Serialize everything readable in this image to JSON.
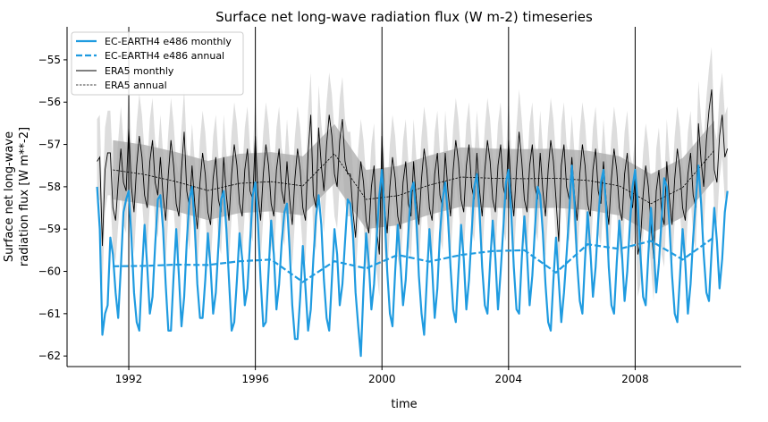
{
  "chart_data": {
    "type": "line",
    "title": "Surface net long-wave radiation flux (W m-2) timeseries",
    "xlabel": "time",
    "ylabel": [
      "Surface net long-wave",
      "radiation flux [W m**-2]"
    ],
    "xlim": [
      1990.05,
      2011.35
    ],
    "ylim": [
      -62.25,
      -54.22
    ],
    "xticks": [
      1992,
      1996,
      2000,
      2004,
      2008
    ],
    "yticks": [
      -55,
      -56,
      -57,
      -58,
      -59,
      -60,
      -61,
      -62
    ],
    "vertical_lines_at_xticks": true,
    "legend_placement": "upper-left",
    "colors": {
      "ec_earth": "#1f9be0",
      "era5": "#000000",
      "era5_annual_band": "#aaaaaa",
      "era5_monthly_band": "#dddddd"
    },
    "monthly_start_year": 1991,
    "annual_years": [
      1991.5,
      1992.5,
      1993.5,
      1994.5,
      1995.5,
      1996.5,
      1997.5,
      1998.5,
      1999.5,
      2000.5,
      2001.5,
      2002.5,
      2003.5,
      2004.5,
      2005.5,
      2006.5,
      2007.5,
      2008.5,
      2009.5,
      2010.5
    ],
    "series": [
      {
        "name": "EC-EARTH4 e486 monthly",
        "style": "solid-thick",
        "monthly": [
          -58.0,
          -59.0,
          -61.5,
          -61.0,
          -60.8,
          -59.2,
          -59.6,
          -60.5,
          -61.1,
          -59.9,
          -58.6,
          -58.3,
          -58.1,
          -59.2,
          -60.5,
          -61.2,
          -61.4,
          -60.0,
          -58.9,
          -59.9,
          -61.0,
          -60.6,
          -59.4,
          -58.3,
          -58.2,
          -59.0,
          -60.3,
          -61.4,
          -61.4,
          -60.1,
          -59.0,
          -60.1,
          -61.3,
          -60.6,
          -59.3,
          -58.3,
          -58.0,
          -58.9,
          -60.3,
          -61.1,
          -61.1,
          -60.2,
          -59.1,
          -59.9,
          -61.0,
          -60.5,
          -59.4,
          -58.3,
          -58.1,
          -59.0,
          -60.2,
          -61.4,
          -61.2,
          -60.2,
          -59.1,
          -59.7,
          -60.8,
          -60.4,
          -59.3,
          -58.2,
          -57.9,
          -58.9,
          -60.2,
          -61.3,
          -61.2,
          -60.0,
          -58.8,
          -59.6,
          -60.9,
          -60.3,
          -59.3,
          -58.6,
          -58.4,
          -59.5,
          -60.8,
          -61.6,
          -61.6,
          -60.6,
          -59.4,
          -60.4,
          -61.4,
          -60.9,
          -59.7,
          -58.7,
          -58.2,
          -58.9,
          -60.2,
          -61.1,
          -61.4,
          -60.2,
          -59.0,
          -59.6,
          -60.8,
          -60.3,
          -59.3,
          -58.3,
          -58.4,
          -59.1,
          -60.5,
          -61.3,
          -62.0,
          -60.4,
          -59.1,
          -59.8,
          -60.9,
          -60.3,
          -59.2,
          -58.2,
          -57.6,
          -58.6,
          -60.0,
          -61.0,
          -61.3,
          -60.0,
          -58.9,
          -59.8,
          -60.8,
          -60.2,
          -59.1,
          -58.1,
          -57.9,
          -58.7,
          -60.1,
          -61.0,
          -61.5,
          -60.2,
          -59.0,
          -59.9,
          -61.1,
          -60.4,
          -59.1,
          -58.3,
          -57.9,
          -58.7,
          -59.9,
          -60.9,
          -61.2,
          -60.0,
          -58.9,
          -59.7,
          -60.9,
          -60.2,
          -59.1,
          -58.0,
          -57.7,
          -58.6,
          -59.9,
          -60.8,
          -61.0,
          -59.8,
          -58.8,
          -59.7,
          -60.9,
          -60.0,
          -59.0,
          -57.9,
          -57.6,
          -58.6,
          -59.9,
          -60.9,
          -61.0,
          -59.7,
          -58.7,
          -59.6,
          -60.8,
          -60.1,
          -59.0,
          -58.0,
          -58.2,
          -59.1,
          -60.3,
          -61.2,
          -61.4,
          -60.2,
          -59.2,
          -60.2,
          -61.2,
          -60.5,
          -59.6,
          -58.6,
          -57.5,
          -58.4,
          -59.8,
          -60.7,
          -61.0,
          -59.7,
          -58.6,
          -59.5,
          -60.6,
          -59.9,
          -58.8,
          -57.9,
          -57.6,
          -58.5,
          -59.9,
          -60.8,
          -61.0,
          -59.8,
          -58.8,
          -59.6,
          -60.7,
          -60.0,
          -58.9,
          -58.0,
          -57.6,
          -58.4,
          -59.6,
          -60.6,
          -60.8,
          -59.6,
          -58.5,
          -59.4,
          -60.5,
          -59.8,
          -58.8,
          -57.8,
          -58.0,
          -58.9,
          -60.1,
          -61.0,
          -61.2,
          -60.1,
          -59.0,
          -59.8,
          -61.0,
          -60.3,
          -59.2,
          -58.3,
          -57.5,
          -58.4,
          -59.6,
          -60.5,
          -60.7,
          -59.5,
          -58.5,
          -59.3,
          -60.4,
          -59.7,
          -58.6,
          -58.1
        ]
      },
      {
        "name": "EC-EARTH4 e486 annual",
        "style": "dashed-thick",
        "annual": [
          -59.88,
          -59.87,
          -59.84,
          -59.85,
          -59.76,
          -59.72,
          -60.25,
          -59.76,
          -59.93,
          -59.61,
          -59.77,
          -59.61,
          -59.52,
          -59.5,
          -60.03,
          -59.36,
          -59.47,
          -59.28,
          -59.72,
          -59.19
        ]
      },
      {
        "name": "ERA5 monthly",
        "style": "solid-thin",
        "band_halfwidth": 1.0,
        "monthly": [
          -57.4,
          -57.3,
          -59.4,
          -57.6,
          -57.2,
          -57.2,
          -58.5,
          -58.8,
          -57.9,
          -57.1,
          -57.9,
          -58.1,
          -56.6,
          -58.0,
          -58.6,
          -57.5,
          -56.8,
          -57.3,
          -58.2,
          -58.5,
          -57.4,
          -56.9,
          -57.9,
          -58.2,
          -57.3,
          -58.2,
          -58.8,
          -57.7,
          -56.9,
          -57.5,
          -58.4,
          -58.7,
          -57.6,
          -56.7,
          -58.1,
          -58.5,
          -57.5,
          -58.4,
          -59.0,
          -57.9,
          -57.2,
          -57.7,
          -58.6,
          -58.9,
          -57.8,
          -57.3,
          -58.3,
          -58.6,
          -57.3,
          -58.2,
          -58.8,
          -57.7,
          -57.0,
          -57.5,
          -58.4,
          -58.7,
          -57.6,
          -57.1,
          -58.1,
          -58.3,
          -56.8,
          -58.2,
          -58.8,
          -57.7,
          -57.0,
          -57.5,
          -58.4,
          -58.7,
          -57.6,
          -57.1,
          -58.1,
          -58.4,
          -57.4,
          -58.3,
          -58.9,
          -57.8,
          -57.1,
          -57.6,
          -58.5,
          -58.8,
          -57.2,
          -56.3,
          -58.2,
          -58.5,
          -56.6,
          -57.5,
          -58.1,
          -57.0,
          -56.3,
          -56.8,
          -57.7,
          -58.0,
          -56.9,
          -56.4,
          -57.4,
          -57.7,
          -57.7,
          -58.6,
          -59.2,
          -58.1,
          -57.4,
          -57.9,
          -58.8,
          -59.1,
          -58.0,
          -57.5,
          -59.0,
          -59.6,
          -56.8,
          -58.5,
          -59.1,
          -58.0,
          -57.3,
          -57.8,
          -58.7,
          -59.0,
          -57.9,
          -57.4,
          -58.4,
          -58.7,
          -57.4,
          -58.3,
          -58.9,
          -57.8,
          -57.1,
          -57.6,
          -58.5,
          -58.8,
          -57.7,
          -57.2,
          -58.2,
          -58.5,
          -57.2,
          -58.1,
          -58.7,
          -57.6,
          -56.9,
          -57.4,
          -58.3,
          -58.6,
          -57.5,
          -57.0,
          -58.0,
          -58.3,
          -57.2,
          -58.1,
          -58.7,
          -57.6,
          -56.9,
          -57.4,
          -58.3,
          -58.6,
          -57.5,
          -57.0,
          -58.0,
          -58.3,
          -56.9,
          -58.1,
          -58.7,
          -57.6,
          -56.7,
          -57.4,
          -58.3,
          -58.6,
          -57.5,
          -57.0,
          -58.0,
          -58.3,
          -57.2,
          -58.1,
          -58.7,
          -57.6,
          -56.9,
          -57.4,
          -58.3,
          -59.3,
          -57.5,
          -57.0,
          -58.0,
          -58.3,
          -57.3,
          -58.2,
          -58.8,
          -57.7,
          -57.0,
          -57.5,
          -58.4,
          -58.7,
          -57.6,
          -57.1,
          -58.1,
          -58.4,
          -57.4,
          -58.3,
          -58.9,
          -57.8,
          -57.1,
          -57.6,
          -58.5,
          -58.8,
          -57.7,
          -57.2,
          -58.2,
          -58.5,
          -57.8,
          -59.6,
          -59.3,
          -58.2,
          -57.5,
          -58.0,
          -58.9,
          -59.7,
          -58.1,
          -57.6,
          -58.6,
          -58.9,
          -57.4,
          -58.3,
          -58.9,
          -57.8,
          -57.1,
          -57.6,
          -58.5,
          -58.8,
          -57.7,
          -57.2,
          -58.2,
          -58.5,
          -56.5,
          -57.4,
          -58.0,
          -56.9,
          -56.2,
          -55.7,
          -57.6,
          -57.9,
          -56.8,
          -56.3,
          -57.3,
          -57.1
        ]
      },
      {
        "name": "ERA5 annual",
        "style": "dashed-thin",
        "band_halfwidth": 0.7,
        "annual": [
          -57.6,
          -57.71,
          -57.88,
          -58.09,
          -57.92,
          -57.88,
          -57.98,
          -57.22,
          -58.3,
          -58.21,
          -57.96,
          -57.77,
          -57.8,
          -57.81,
          -57.8,
          -57.85,
          -57.98,
          -58.4,
          -58.02,
          -57.14
        ]
      }
    ]
  }
}
